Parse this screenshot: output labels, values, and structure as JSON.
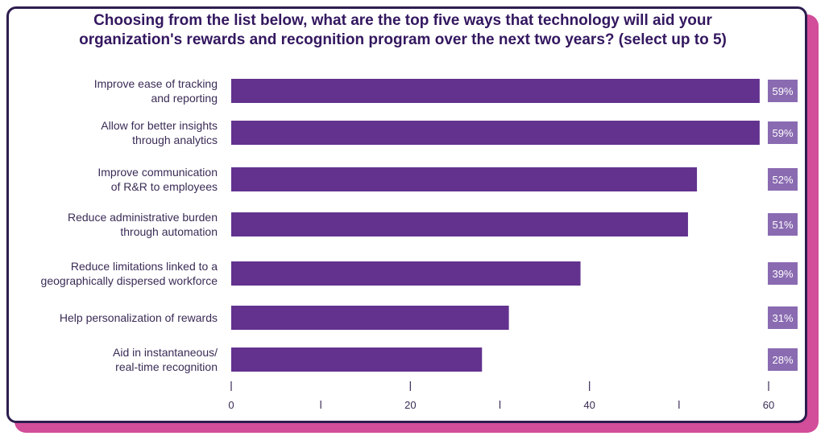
{
  "chart_data": {
    "type": "bar",
    "orientation": "horizontal",
    "title": "Choosing from the list below, what are the top five ways that technology will aid your organization's rewards and recognition program over the next two years? (select up to 5)",
    "categories": [
      [
        "Improve ease of tracking",
        "and reporting"
      ],
      [
        "Allow for better insights",
        "through analytics"
      ],
      [
        "Improve communication",
        "of R&R to employees"
      ],
      [
        "Reduce administrative burden",
        "through automation"
      ],
      [
        "Reduce limitations linked to a",
        "geographically dispersed workforce"
      ],
      [
        "Help personalization of rewards"
      ],
      [
        "Aid in instantaneous/",
        "real-time recognition"
      ]
    ],
    "values": [
      59,
      59,
      52,
      51,
      39,
      31,
      28
    ],
    "value_labels": [
      "59%",
      "59%",
      "52%",
      "51%",
      "39%",
      "31%",
      "28%"
    ],
    "xlim": [
      0,
      60
    ],
    "xticks": [
      0,
      20,
      40,
      60
    ],
    "xtick_labels": [
      "0",
      "20",
      "40",
      "60"
    ],
    "minor_ticks": [
      10,
      30,
      50
    ],
    "xlabel": "",
    "ylabel": "",
    "colors": {
      "bar": "#62328e",
      "value_box": "#8a6bb1",
      "title": "#33175f",
      "frame": "#2d1d4e",
      "accent": "#d24d9a"
    }
  }
}
